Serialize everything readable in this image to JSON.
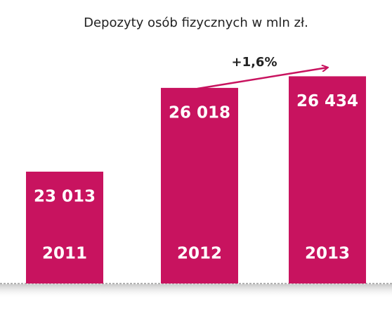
{
  "chart_data": {
    "type": "bar",
    "title": "Depozyty osób fizycznych w mln zł.",
    "categories": [
      "2011",
      "2012",
      "2013"
    ],
    "values": [
      23013,
      26018,
      26434
    ],
    "value_labels": [
      "23 013",
      "26 018",
      "26 434"
    ],
    "color": "#c8135f",
    "ylim": [
      19000,
      27000
    ],
    "annotation": "+1,6%"
  }
}
